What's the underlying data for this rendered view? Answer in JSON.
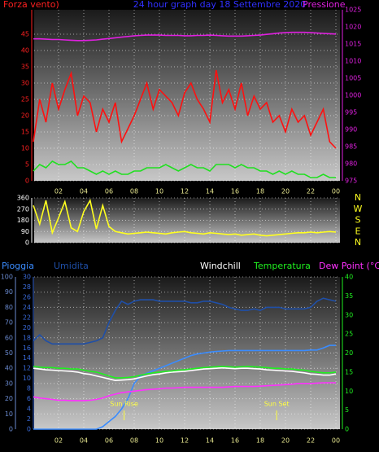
{
  "chart_data": [
    {
      "type": "line",
      "title": "24 hour graph day 18 Settembre 2020",
      "ylabel": "Forza vento)",
      "y2label": "Pressione",
      "xlim": [
        0,
        24
      ],
      "xticks": [
        {
          "value": 2,
          "label": "02"
        },
        {
          "value": 4,
          "label": "04"
        },
        {
          "value": 6,
          "label": "06"
        },
        {
          "value": 8,
          "label": "08"
        },
        10,
        12,
        14,
        16,
        18,
        20,
        22,
        {
          "value": 24,
          "label": "00"
        }
      ],
      "ylim": [
        0,
        52.5
      ],
      "yticks": [
        0,
        5,
        10,
        15,
        20,
        25,
        30,
        35,
        40,
        45
      ],
      "y2lim": [
        975,
        1025
      ],
      "y2ticks": [
        975,
        980,
        985,
        990,
        995,
        1000,
        1005,
        1010,
        1015,
        1020,
        1025
      ],
      "grid": true,
      "x": [
        0,
        0.5,
        1,
        1.5,
        2,
        2.5,
        3,
        3.5,
        4,
        4.5,
        5,
        5.5,
        6,
        6.5,
        7,
        7.5,
        8,
        8.5,
        9,
        9.5,
        10,
        10.5,
        11,
        11.5,
        12,
        12.5,
        13,
        13.5,
        14,
        14.5,
        15,
        15.5,
        16,
        16.5,
        17,
        17.5,
        18,
        18.5,
        19,
        19.5,
        20,
        20.5,
        21,
        21.5,
        22,
        22.5,
        23,
        23.5,
        24
      ],
      "series": [
        {
          "color": "#ff1010",
          "axis": "y",
          "values": [
            12,
            25,
            18,
            30,
            22,
            28,
            33,
            20,
            26,
            24,
            15,
            22,
            18,
            24,
            12,
            16,
            20,
            25,
            30,
            22,
            28,
            26,
            24,
            20,
            27,
            30,
            25,
            22,
            18,
            34,
            24,
            28,
            22,
            30,
            20,
            26,
            22,
            24,
            18,
            20,
            15,
            22,
            18,
            20,
            14,
            18,
            22,
            12,
            10
          ]
        },
        {
          "color": "#20e020",
          "axis": "y",
          "values": [
            3,
            5,
            4,
            6,
            5,
            5,
            6,
            4,
            4,
            3,
            2,
            3,
            2,
            3,
            2,
            2,
            3,
            3,
            4,
            4,
            4,
            5,
            4,
            3,
            4,
            5,
            4,
            4,
            3,
            5,
            5,
            5,
            4,
            5,
            4,
            4,
            3,
            3,
            2,
            3,
            2,
            3,
            2,
            2,
            1,
            1,
            2,
            1,
            1
          ]
        },
        {
          "color": "#e020e0",
          "axis": "y2",
          "values": [
            1016.5,
            1016.5,
            1016.4,
            1016.3,
            1016.3,
            1016.2,
            1016.1,
            1016.0,
            1016.0,
            1016.1,
            1016.2,
            1016.4,
            1016.6,
            1016.8,
            1017,
            1017.2,
            1017.4,
            1017.5,
            1017.6,
            1017.6,
            1017.6,
            1017.5,
            1017.5,
            1017.5,
            1017.4,
            1017.4,
            1017.5,
            1017.5,
            1017.6,
            1017.5,
            1017.4,
            1017.3,
            1017.3,
            1017.3,
            1017.4,
            1017.5,
            1017.6,
            1017.8,
            1018,
            1018.2,
            1018.3,
            1018.4,
            1018.4,
            1018.4,
            1018.3,
            1018.2,
            1018.1,
            1018.0,
            1017.9
          ]
        }
      ]
    },
    {
      "type": "line",
      "xlim": [
        0,
        24
      ],
      "xticks": [
        2,
        4,
        6,
        8,
        10,
        12,
        14,
        16,
        18,
        20,
        22,
        24
      ],
      "ylim": [
        0,
        360
      ],
      "yticks": [
        0,
        90,
        180,
        270,
        360
      ],
      "y2lim": [
        0,
        360
      ],
      "y2ticks": [
        {
          "value": 0,
          "label": "N"
        },
        {
          "value": 90,
          "label": "E"
        },
        {
          "value": 180,
          "label": "S"
        },
        {
          "value": 270,
          "label": "W"
        },
        {
          "value": 360,
          "label": "N"
        }
      ],
      "grid": true,
      "x": [
        0,
        0.5,
        1,
        1.5,
        2,
        2.5,
        3,
        3.5,
        4,
        4.5,
        5,
        5.5,
        6,
        6.5,
        7,
        7.5,
        8,
        8.5,
        9,
        9.5,
        10,
        10.5,
        11,
        11.5,
        12,
        12.5,
        13,
        13.5,
        14,
        14.5,
        15,
        15.5,
        16,
        16.5,
        17,
        17.5,
        18,
        18.5,
        19,
        19.5,
        20,
        20.5,
        21,
        21.5,
        22,
        22.5,
        23,
        23.5,
        24
      ],
      "series": [
        {
          "color": "#ffff20",
          "axis": "y",
          "values": [
            300,
            150,
            340,
            80,
            200,
            330,
            120,
            90,
            250,
            340,
            110,
            300,
            130,
            90,
            80,
            70,
            75,
            80,
            85,
            80,
            75,
            70,
            80,
            85,
            90,
            80,
            75,
            70,
            80,
            75,
            70,
            65,
            70,
            60,
            65,
            70,
            60,
            55,
            60,
            65,
            70,
            75,
            80,
            80,
            85,
            80,
            85,
            90,
            85
          ]
        }
      ]
    },
    {
      "type": "line",
      "xlim": [
        0,
        24
      ],
      "xticks": [
        {
          "value": 2,
          "label": "02"
        },
        {
          "value": 4,
          "label": "04"
        },
        {
          "value": 6,
          "label": "06"
        },
        {
          "value": 8,
          "label": "08"
        },
        10,
        12,
        14,
        16,
        18,
        20,
        22,
        {
          "value": 24,
          "label": "00"
        }
      ],
      "ylim": [
        0,
        100
      ],
      "yticks": [
        0,
        10,
        20,
        30,
        40,
        50,
        60,
        70,
        80,
        90,
        100
      ],
      "y3lim": [
        0,
        30
      ],
      "y3ticks": [
        0,
        2,
        4,
        6,
        8,
        10,
        12,
        14,
        16,
        18,
        20,
        22,
        24,
        26,
        28,
        30
      ],
      "y2lim": [
        0,
        40
      ],
      "y2ticks": [
        0,
        5,
        10,
        15,
        20,
        25,
        30,
        35,
        40
      ],
      "grid": true,
      "annotations": [
        {
          "text": "Sun Rise",
          "x": 7.2
        },
        {
          "text": "Sun Set",
          "x": 19.3
        }
      ],
      "x": [
        0,
        0.5,
        1,
        1.5,
        2,
        2.5,
        3,
        3.5,
        4,
        4.5,
        5,
        5.5,
        6,
        6.5,
        7,
        7.5,
        8,
        8.5,
        9,
        9.5,
        10,
        10.5,
        11,
        11.5,
        12,
        12.5,
        13,
        13.5,
        14,
        14.5,
        15,
        15.5,
        16,
        16.5,
        17,
        17.5,
        18,
        18.5,
        19,
        19.5,
        20,
        20.5,
        21,
        21.5,
        22,
        22.5,
        23,
        23.5,
        24
      ],
      "series": [
        {
          "name": "Pioggia",
          "color": "#3a8cff",
          "axis": "y3",
          "values": [
            0,
            0,
            0,
            0,
            0,
            0,
            0,
            0,
            0,
            0,
            0,
            0.5,
            1.5,
            2.5,
            4,
            6,
            9,
            10.5,
            11,
            11.5,
            12,
            12.5,
            13,
            13.5,
            14,
            14.5,
            14.8,
            15,
            15.2,
            15.3,
            15.4,
            15.5,
            15.5,
            15.5,
            15.5,
            15.5,
            15.5,
            15.5,
            15.5,
            15.5,
            15.5,
            15.5,
            15.5,
            15.5,
            15.6,
            15.6,
            16,
            16.5,
            16.5
          ]
        },
        {
          "name": "Umidita",
          "color": "#1f4fa8",
          "axis": "y",
          "values": [
            58,
            62,
            58,
            56,
            56,
            56,
            56,
            56,
            56,
            57,
            58,
            60,
            70,
            78,
            84,
            82,
            84,
            85,
            85,
            85,
            84,
            84,
            84,
            84,
            84,
            83,
            83,
            84,
            84,
            83,
            82,
            80,
            79,
            78,
            78,
            79,
            78,
            80,
            80,
            80,
            79,
            79,
            79,
            79,
            80,
            84,
            86,
            85,
            84
          ]
        },
        {
          "name": "Windchill",
          "color": "#ffffff",
          "axis": "y2",
          "values": [
            16,
            15.8,
            15.6,
            15.5,
            15.4,
            15.3,
            15.2,
            15.0,
            14.6,
            14.4,
            14.0,
            13.6,
            13.2,
            12.8,
            12.9,
            13.0,
            13.2,
            13.6,
            14.0,
            14.3,
            14.5,
            14.8,
            15.0,
            15.1,
            15.2,
            15.4,
            15.6,
            15.8,
            15.9,
            16.0,
            16.1,
            16.0,
            15.9,
            16.0,
            16.0,
            15.9,
            15.8,
            15.6,
            15.5,
            15.4,
            15.3,
            15.2,
            15.0,
            14.8,
            14.5,
            14.4,
            14.2,
            14.2,
            14.5
          ]
        },
        {
          "name": "Temperatura",
          "color": "#20f020",
          "axis": "y2",
          "values": [
            16.5,
            16.3,
            16.2,
            16.2,
            16.0,
            16.0,
            15.8,
            15.8,
            15.5,
            15.2,
            15.0,
            14.5,
            14.0,
            13.5,
            13.5,
            13.6,
            13.8,
            14.2,
            14.5,
            14.8,
            15.0,
            15.2,
            15.3,
            15.5,
            15.6,
            15.8,
            16.0,
            16.2,
            16.3,
            16.4,
            16.5,
            16.4,
            16.3,
            16.4,
            16.5,
            16.4,
            16.3,
            16.2,
            16.0,
            16.0,
            15.8,
            15.8,
            15.6,
            15.5,
            15.2,
            15.0,
            14.8,
            14.8,
            15.0
          ]
        },
        {
          "name": "Dew Point (°C)",
          "color": "#ff30ff",
          "axis": "y2",
          "values": [
            8.5,
            8.2,
            8.0,
            7.8,
            7.6,
            7.6,
            7.5,
            7.5,
            7.5,
            7.6,
            7.8,
            8.2,
            8.8,
            9.2,
            9.6,
            9.8,
            10.0,
            10.2,
            10.4,
            10.5,
            10.6,
            10.8,
            10.8,
            10.9,
            11.0,
            11.0,
            11.0,
            11.0,
            11.0,
            11.0,
            11.0,
            11.1,
            11.2,
            11.2,
            11.2,
            11.2,
            11.3,
            11.4,
            11.5,
            11.6,
            11.7,
            11.8,
            12.0,
            12.0,
            12.0,
            12.1,
            12.2,
            12.2,
            12.2
          ]
        }
      ]
    }
  ]
}
